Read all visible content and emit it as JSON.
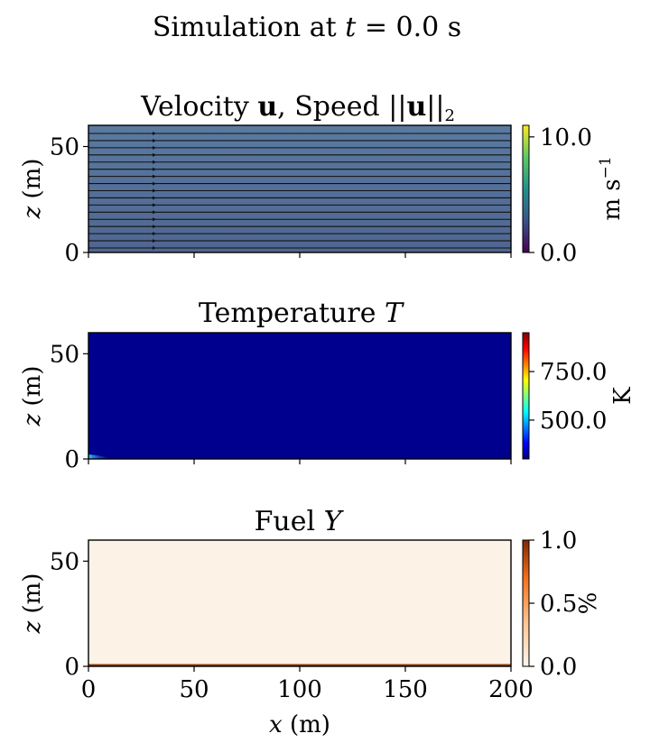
{
  "figure": {
    "title_prefix": "Simulation at ",
    "title_var": "t",
    "title_suffix": " = 0.0 s"
  },
  "chart_data": [
    {
      "type": "heatmap",
      "title_plain": "Velocity ",
      "title_bold": "u",
      "title_mid": ", Speed ||",
      "title_bold2": "u",
      "title_end": "||",
      "title_sub": "2",
      "ylabel_var": "z",
      "ylabel_unit": " (m)",
      "xlim": [
        0,
        200
      ],
      "ylim": [
        0,
        60
      ],
      "yticks": [
        "0",
        "50"
      ],
      "colorbar": {
        "label": "m s",
        "label_sup": "−1",
        "ticks": [
          "0.0",
          "10.0"
        ],
        "range": [
          0,
          11
        ],
        "colormap": "viridis"
      },
      "field_colors": {
        "top": "#5a7aa0",
        "bottom": "#4f6690"
      },
      "streamlines": true
    },
    {
      "type": "heatmap",
      "title_plain": "Temperature ",
      "title_var": "T",
      "ylabel_var": "z",
      "ylabel_unit": " (m)",
      "xlim": [
        0,
        200
      ],
      "ylim": [
        0,
        60
      ],
      "yticks": [
        "0",
        "50"
      ],
      "colorbar": {
        "label": "K",
        "ticks": [
          "500.0",
          "750.0"
        ],
        "range": [
          300,
          950
        ],
        "colormap": "jet"
      },
      "field_color": "#00008f"
    },
    {
      "type": "heatmap",
      "title_plain": "Fuel ",
      "title_var": "Y",
      "ylabel_var": "z",
      "ylabel_unit": " (m)",
      "xlabel_var": "x",
      "xlabel_unit": " (m)",
      "xlim": [
        0,
        200
      ],
      "ylim": [
        0,
        60
      ],
      "xticks": [
        "0",
        "50",
        "100",
        "150",
        "200"
      ],
      "yticks": [
        "0",
        "50"
      ],
      "colorbar": {
        "label": "%",
        "ticks": [
          "0.0",
          "0.5",
          "1.0"
        ],
        "range": [
          0,
          1
        ],
        "colormap": "oranges"
      },
      "field_color": "#fdf2e6"
    }
  ]
}
